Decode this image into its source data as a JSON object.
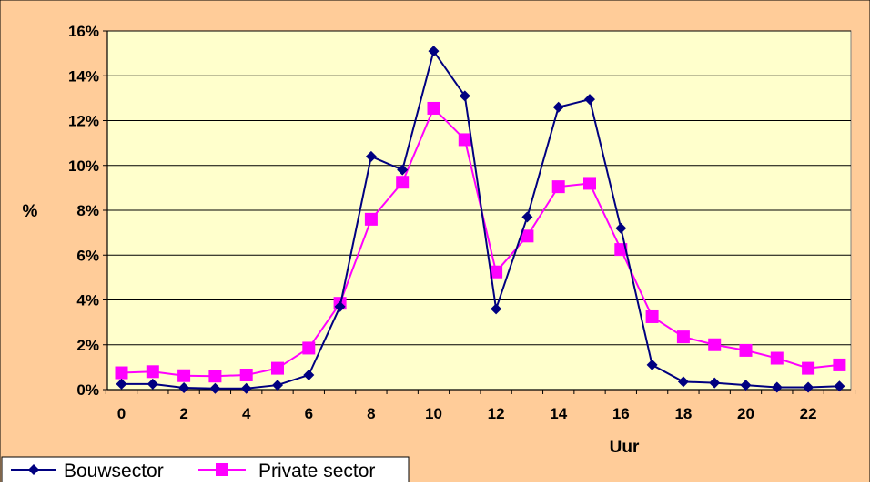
{
  "colors": {
    "outer_background": "#FFCC99",
    "plot_background": "#FFFFCC",
    "gridline": "#000000",
    "legend_background": "#FFFFFF"
  },
  "chart_data": {
    "type": "line",
    "title": "",
    "xlabel": "Uur",
    "ylabel": "%",
    "x": [
      0,
      1,
      2,
      3,
      4,
      5,
      6,
      7,
      8,
      9,
      10,
      11,
      12,
      13,
      14,
      15,
      16,
      17,
      18,
      19,
      20,
      21,
      22,
      23
    ],
    "x_tick_labels": [
      "0",
      "2",
      "4",
      "6",
      "8",
      "10",
      "12",
      "14",
      "16",
      "18",
      "20",
      "22"
    ],
    "y_tick_labels": [
      "0%",
      "2%",
      "4%",
      "6%",
      "8%",
      "10%",
      "12%",
      "14%",
      "16%"
    ],
    "xlim": [
      0,
      23
    ],
    "ylim": [
      0,
      16
    ],
    "grid": "horizontal",
    "legend": "bottom-left",
    "series": [
      {
        "name": "Bouwsector",
        "color": "#000080",
        "marker": "diamond",
        "values": [
          0.25,
          0.25,
          0.08,
          0.05,
          0.05,
          0.2,
          0.65,
          3.7,
          10.4,
          9.8,
          15.1,
          13.1,
          3.6,
          7.7,
          12.6,
          12.95,
          7.2,
          1.1,
          0.35,
          0.3,
          0.2,
          0.1,
          0.1,
          0.15
        ]
      },
      {
        "name": "Private sector",
        "color": "#FF00FF",
        "marker": "square",
        "values": [
          0.75,
          0.8,
          0.62,
          0.6,
          0.65,
          0.95,
          1.85,
          3.85,
          7.6,
          9.25,
          12.55,
          11.15,
          5.25,
          6.85,
          9.05,
          9.2,
          6.25,
          3.25,
          2.35,
          2.0,
          1.75,
          1.4,
          0.95,
          1.1
        ]
      }
    ]
  }
}
